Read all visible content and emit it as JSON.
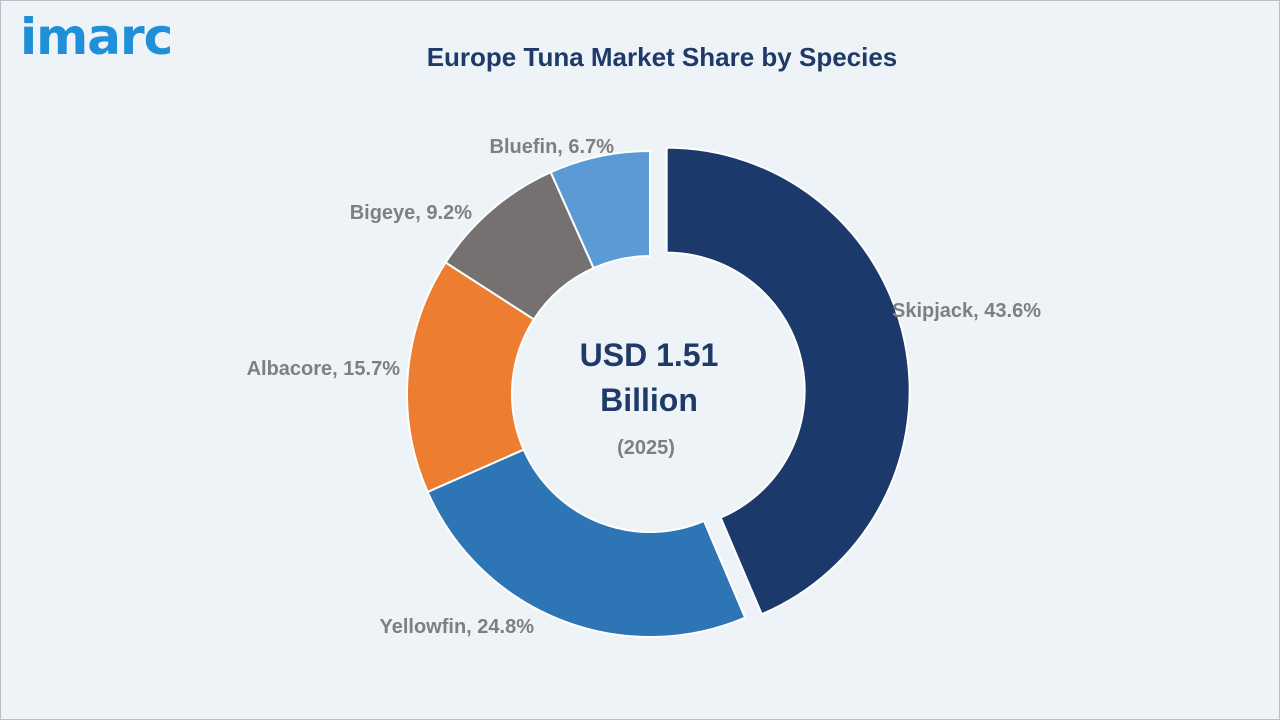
{
  "brand": {
    "logo_text": "imarc",
    "logo_color": "#1f8fd8"
  },
  "chart_data": {
    "type": "pie",
    "subtype": "donut",
    "title": "Europe Tuna Market Share by Species",
    "center": {
      "value_line1": "USD 1.51",
      "value_line2": "Billion",
      "year": "(2025)"
    },
    "slices": [
      {
        "name": "Skipjack",
        "value": 43.6,
        "label": "Skipjack, 43.6%",
        "color": "#1b3a6b",
        "exploded": true
      },
      {
        "name": "Yellowfin",
        "value": 24.8,
        "label": "Yellowfin, 24.8%",
        "color": "#2e75b6",
        "exploded": false
      },
      {
        "name": "Albacore",
        "value": 15.7,
        "label": "Albacore, 15.7%",
        "color": "#ed7d31",
        "exploded": false
      },
      {
        "name": "Bigeye",
        "value": 9.2,
        "label": "Bigeye, 9.2%",
        "color": "#767171",
        "exploded": false
      },
      {
        "name": "Bluefin",
        "value": 6.7,
        "label": "Bluefin, 6.7%",
        "color": "#5b9bd5",
        "exploded": false
      }
    ]
  }
}
